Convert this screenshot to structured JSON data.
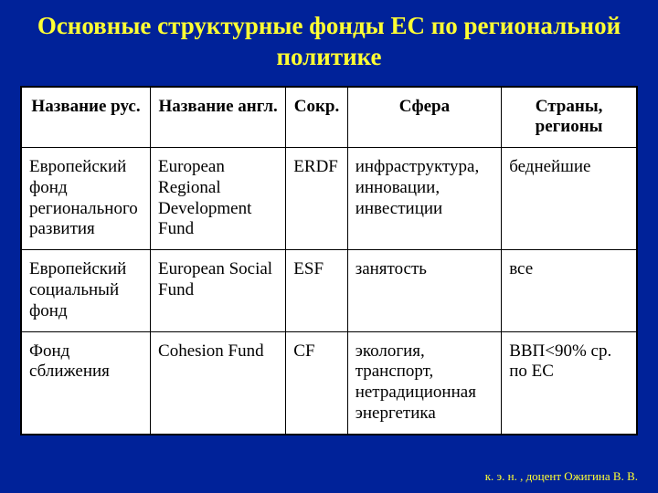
{
  "title": "Основные структурные фонды ЕС по региональной политике",
  "columns": [
    "Название рус.",
    "Название англ.",
    "Сокр.",
    "Сфера",
    "Страны, регионы"
  ],
  "rows": [
    {
      "rus": "Европейский фонд регионального развития",
      "eng": "European Regional Development Fund",
      "abbr": "ERDF",
      "sphere": "инфраструктура, инновации, инвестиции",
      "countries": "беднейшие"
    },
    {
      "rus": "Европейский социальный фонд",
      "eng": "European Social Fund",
      "abbr": "ESF",
      "sphere": "занятость",
      "countries": "все"
    },
    {
      "rus": "Фонд сближения",
      "eng": "Cohesion Fund",
      "abbr": "CF",
      "sphere": "экология, транспорт, нетрадиционная энергетика",
      "countries": "ВВП<90% ср. по ЕС"
    }
  ],
  "footer": "к. э. н. , доцент Ожигина В. В.",
  "colors": {
    "background": "#002299",
    "title_color": "#ffff33",
    "table_bg": "#ffffff",
    "border": "#000000",
    "text": "#000000",
    "footer_color": "#ffff33"
  }
}
